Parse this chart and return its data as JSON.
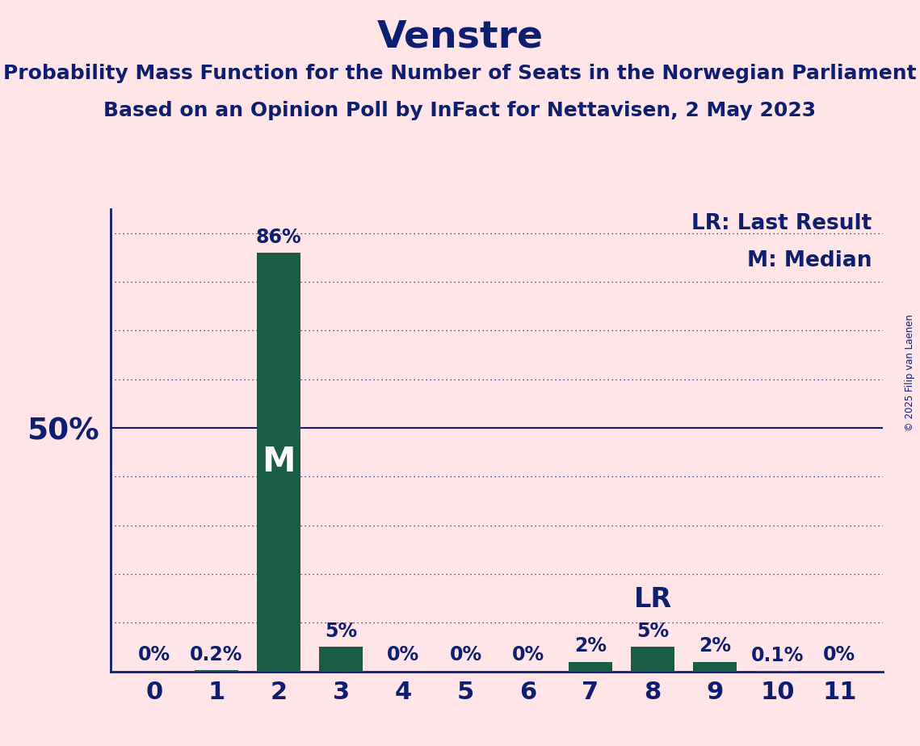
{
  "title": "Venstre",
  "subtitle1": "Probability Mass Function for the Number of Seats in the Norwegian Parliament",
  "subtitle2": "Based on an Opinion Poll by InFact for Nettavisen, 2 May 2023",
  "copyright": "© 2025 Filip van Laenen",
  "seats": [
    0,
    1,
    2,
    3,
    4,
    5,
    6,
    7,
    8,
    9,
    10,
    11
  ],
  "probabilities": [
    0.0,
    0.2,
    86.0,
    5.0,
    0.0,
    0.0,
    0.0,
    2.0,
    5.0,
    2.0,
    0.1,
    0.0
  ],
  "bar_labels": [
    "0%",
    "0.2%",
    "86%",
    "5%",
    "0%",
    "0%",
    "0%",
    "2%",
    "5%",
    "2%",
    "0.1%",
    "0%"
  ],
  "median_seat": 2,
  "last_result_seat": 8,
  "bar_color": "#1a5c45",
  "background_color": "#FFE4E8",
  "text_color": "#0d1f6e",
  "ylim": [
    0,
    95
  ],
  "y_50_label": "50%",
  "dotted_lines": [
    10,
    20,
    30,
    40,
    60,
    70,
    80,
    90
  ],
  "solid_line": 50,
  "title_fontsize": 34,
  "subtitle_fontsize": 18,
  "label_fontsize": 17,
  "tick_fontsize": 22,
  "legend_fontsize": 19,
  "ytick_fontsize": 27,
  "M_fontsize": 30,
  "LR_fontsize": 24
}
